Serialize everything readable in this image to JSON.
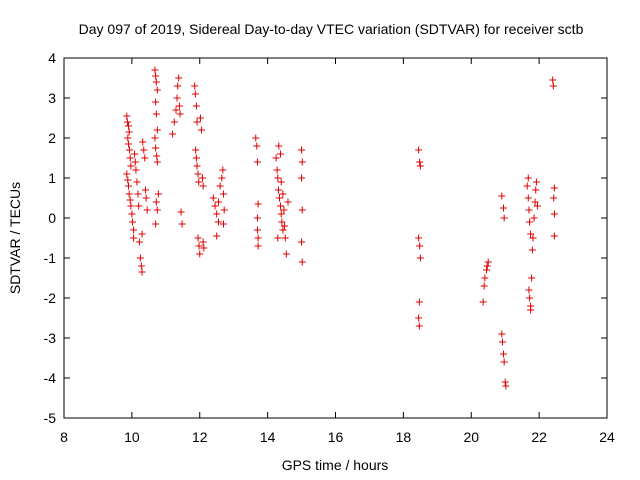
{
  "chart_data": {
    "type": "scatter",
    "title": "Day 097 of 2019, Sidereal Day-to-day VTEC variation (SDTVAR) for receiver sctb",
    "xlabel": "GPS time / hours",
    "ylabel": "SDTVAR / TECUs",
    "xlim": [
      8,
      24
    ],
    "ylim": [
      -5,
      4
    ],
    "xticks": [
      8,
      10,
      12,
      14,
      16,
      18,
      20,
      22,
      24
    ],
    "yticks": [
      -5,
      -4,
      -3,
      -2,
      -1,
      0,
      1,
      2,
      3,
      4
    ],
    "marker": "plus",
    "color": "#e00000",
    "grid": false,
    "series": [
      {
        "name": "sdtvar",
        "points": [
          [
            9.85,
            2.55
          ],
          [
            9.87,
            2.4
          ],
          [
            9.9,
            2.3
          ],
          [
            9.92,
            2.15
          ],
          [
            9.88,
            2.0
          ],
          [
            9.9,
            1.85
          ],
          [
            9.93,
            1.7
          ],
          [
            9.95,
            1.5
          ],
          [
            9.97,
            1.3
          ],
          [
            9.85,
            1.1
          ],
          [
            9.88,
            0.95
          ],
          [
            9.9,
            0.8
          ],
          [
            9.92,
            0.6
          ],
          [
            9.95,
            0.45
          ],
          [
            9.97,
            0.3
          ],
          [
            10.0,
            0.1
          ],
          [
            10.02,
            -0.1
          ],
          [
            10.05,
            -0.3
          ],
          [
            10.05,
            -0.5
          ],
          [
            10.08,
            1.6
          ],
          [
            10.1,
            1.4
          ],
          [
            10.12,
            1.2
          ],
          [
            10.15,
            0.9
          ],
          [
            10.18,
            0.6
          ],
          [
            10.2,
            0.3
          ],
          [
            10.22,
            -0.6
          ],
          [
            10.25,
            -1.0
          ],
          [
            10.28,
            -1.2
          ],
          [
            10.3,
            -1.35
          ],
          [
            10.32,
            1.9
          ],
          [
            10.35,
            1.7
          ],
          [
            10.38,
            1.5
          ],
          [
            10.4,
            0.7
          ],
          [
            10.42,
            0.5
          ],
          [
            10.45,
            0.2
          ],
          [
            10.3,
            -0.4
          ],
          [
            10.68,
            3.7
          ],
          [
            10.7,
            3.55
          ],
          [
            10.72,
            3.4
          ],
          [
            10.75,
            3.2
          ],
          [
            10.7,
            2.9
          ],
          [
            10.72,
            2.6
          ],
          [
            10.75,
            2.2
          ],
          [
            10.68,
            2.0
          ],
          [
            10.7,
            1.75
          ],
          [
            10.73,
            1.55
          ],
          [
            10.75,
            1.4
          ],
          [
            10.78,
            0.6
          ],
          [
            10.72,
            0.4
          ],
          [
            10.75,
            0.2
          ],
          [
            10.7,
            -0.15
          ],
          [
            11.2,
            2.1
          ],
          [
            11.25,
            2.4
          ],
          [
            11.3,
            2.7
          ],
          [
            11.33,
            3.0
          ],
          [
            11.35,
            3.3
          ],
          [
            11.38,
            3.5
          ],
          [
            11.4,
            2.8
          ],
          [
            11.42,
            2.6
          ],
          [
            11.45,
            0.15
          ],
          [
            11.48,
            -0.15
          ],
          [
            11.85,
            3.3
          ],
          [
            11.87,
            3.1
          ],
          [
            11.9,
            2.8
          ],
          [
            11.92,
            2.4
          ],
          [
            11.88,
            1.7
          ],
          [
            11.9,
            1.5
          ],
          [
            11.92,
            1.3
          ],
          [
            11.95,
            1.1
          ],
          [
            11.97,
            0.9
          ],
          [
            11.95,
            -0.5
          ],
          [
            11.98,
            -0.7
          ],
          [
            12.0,
            -0.9
          ],
          [
            12.02,
            2.5
          ],
          [
            12.05,
            2.2
          ],
          [
            12.08,
            1.0
          ],
          [
            12.1,
            0.8
          ],
          [
            12.1,
            -0.6
          ],
          [
            12.12,
            -0.75
          ],
          [
            12.4,
            0.5
          ],
          [
            12.45,
            0.3
          ],
          [
            12.5,
            0.1
          ],
          [
            12.55,
            -0.1
          ],
          [
            12.5,
            -0.45
          ],
          [
            12.6,
            0.8
          ],
          [
            12.65,
            1.0
          ],
          [
            12.68,
            1.2
          ],
          [
            12.7,
            0.6
          ],
          [
            12.72,
            0.2
          ],
          [
            12.7,
            -0.15
          ],
          [
            12.55,
            0.4
          ],
          [
            13.65,
            2.0
          ],
          [
            13.68,
            1.8
          ],
          [
            13.7,
            1.4
          ],
          [
            13.72,
            0.35
          ],
          [
            13.7,
            0.0
          ],
          [
            13.7,
            -0.3
          ],
          [
            13.72,
            -0.5
          ],
          [
            13.72,
            -0.7
          ],
          [
            14.25,
            1.5
          ],
          [
            14.28,
            1.2
          ],
          [
            14.3,
            1.0
          ],
          [
            14.32,
            0.7
          ],
          [
            14.35,
            0.5
          ],
          [
            14.38,
            0.3
          ],
          [
            14.4,
            0.1
          ],
          [
            14.42,
            -0.1
          ],
          [
            14.45,
            -0.3
          ],
          [
            14.3,
            -0.5
          ],
          [
            14.33,
            1.8
          ],
          [
            14.38,
            1.6
          ],
          [
            14.4,
            0.9
          ],
          [
            14.45,
            0.6
          ],
          [
            14.48,
            0.2
          ],
          [
            14.5,
            -0.2
          ],
          [
            14.52,
            -0.5
          ],
          [
            14.55,
            -0.9
          ],
          [
            14.6,
            0.4
          ],
          [
            15.0,
            1.7
          ],
          [
            15.02,
            1.4
          ],
          [
            15.0,
            1.0
          ],
          [
            15.02,
            0.2
          ],
          [
            15.0,
            -0.6
          ],
          [
            15.02,
            -1.1
          ],
          [
            18.45,
            1.7
          ],
          [
            18.48,
            1.4
          ],
          [
            18.5,
            1.3
          ],
          [
            18.45,
            -0.5
          ],
          [
            18.48,
            -0.7
          ],
          [
            18.5,
            -1.0
          ],
          [
            18.47,
            -2.1
          ],
          [
            18.45,
            -2.5
          ],
          [
            18.47,
            -2.7
          ],
          [
            20.35,
            -2.1
          ],
          [
            20.38,
            -1.7
          ],
          [
            20.4,
            -1.5
          ],
          [
            20.45,
            -1.3
          ],
          [
            20.5,
            -1.1
          ],
          [
            20.47,
            -1.2
          ],
          [
            20.9,
            0.55
          ],
          [
            20.95,
            0.25
          ],
          [
            20.97,
            0.0
          ],
          [
            20.9,
            -2.9
          ],
          [
            20.92,
            -3.1
          ],
          [
            20.95,
            -3.4
          ],
          [
            20.97,
            -3.6
          ],
          [
            21.0,
            -4.1
          ],
          [
            21.02,
            -4.2
          ],
          [
            21.65,
            0.8
          ],
          [
            21.68,
            0.5
          ],
          [
            21.7,
            0.2
          ],
          [
            21.72,
            -0.1
          ],
          [
            21.75,
            -0.4
          ],
          [
            21.68,
            1.0
          ],
          [
            21.7,
            -1.8
          ],
          [
            21.72,
            -2.0
          ],
          [
            21.75,
            -2.2
          ],
          [
            21.78,
            -1.5
          ],
          [
            21.8,
            -0.8
          ],
          [
            21.82,
            -0.5
          ],
          [
            21.85,
            0.0
          ],
          [
            21.88,
            0.4
          ],
          [
            21.9,
            0.7
          ],
          [
            21.92,
            0.9
          ],
          [
            21.95,
            0.3
          ],
          [
            21.75,
            -2.3
          ],
          [
            22.4,
            3.45
          ],
          [
            22.42,
            3.3
          ],
          [
            22.45,
            0.75
          ],
          [
            22.43,
            0.5
          ],
          [
            22.45,
            0.1
          ],
          [
            22.45,
            -0.45
          ]
        ]
      }
    ]
  }
}
